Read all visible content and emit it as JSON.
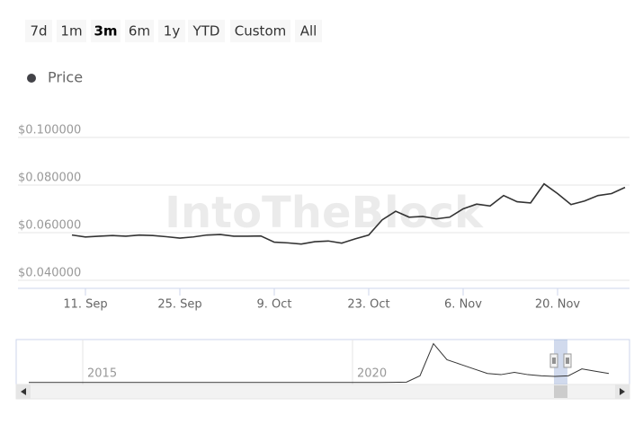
{
  "chart_data": [
    {
      "type": "line",
      "range_buttons": [
        "7d",
        "1m",
        "3m",
        "6m",
        "1y",
        "YTD",
        "Custom",
        "All"
      ],
      "range_selected": 2,
      "watermark": "IntoTheBlock",
      "categories": [
        null,
        "11. Sep",
        null,
        null,
        null,
        null,
        null,
        null,
        "25. Sep",
        null,
        null,
        null,
        null,
        null,
        null,
        "9. Oct",
        null,
        null,
        null,
        null,
        null,
        null,
        "23. Oct",
        null,
        null,
        null,
        null,
        null,
        null,
        "6. Nov",
        null,
        null,
        null,
        null,
        null,
        null,
        "20. Nov",
        null,
        null,
        null,
        null,
        null
      ],
      "series": [
        {
          "name": "Price",
          "color": "#333333",
          "legend_color": "#434348",
          "values": [
            0.059,
            0.0582,
            0.0585,
            0.0588,
            0.0585,
            0.059,
            0.0588,
            0.0583,
            0.0577,
            0.0582,
            0.059,
            0.0592,
            0.0585,
            0.0585,
            0.0586,
            0.056,
            0.0557,
            0.0552,
            0.0562,
            0.0565,
            0.0556,
            0.0574,
            0.059,
            0.0654,
            0.069,
            0.0665,
            0.0668,
            0.0658,
            0.0665,
            0.07,
            0.072,
            0.0712,
            0.0756,
            0.073,
            0.0725,
            0.0805,
            0.0764,
            0.0718,
            0.0733,
            0.0756,
            0.0764,
            0.079
          ]
        }
      ],
      "ylim": [
        0.0366,
        0.1
      ],
      "yticks": [
        {
          "value": 0.04,
          "label": "$0.040000"
        },
        {
          "value": 0.06,
          "label": "$0.060000"
        },
        {
          "value": 0.08,
          "label": "$0.080000"
        },
        {
          "value": 0.1,
          "label": "$0.100000"
        }
      ],
      "grid": true
    },
    {
      "type": "navigator",
      "categories": [
        null,
        null,
        null,
        null,
        "2015",
        null,
        null,
        null,
        null,
        null,
        null,
        null,
        null,
        null,
        null,
        null,
        null,
        null,
        null,
        null,
        null,
        null,
        null,
        null,
        "2020",
        null,
        null,
        null,
        null,
        null,
        null,
        null,
        null,
        null,
        null,
        null,
        null,
        null,
        null,
        null,
        null,
        null,
        null,
        null
      ],
      "series": [
        {
          "color": "#333333",
          "values": [
            0.002,
            0.002,
            0.002,
            0.002,
            0.002,
            0.002,
            0.002,
            0.002,
            0.002,
            0.002,
            0.002,
            0.002,
            0.002,
            0.002,
            0.002,
            0.002,
            0.002,
            0.002,
            0.002,
            0.002,
            0.002,
            0.002,
            0.002,
            0.002,
            0.002,
            0.002,
            0.002,
            0.003,
            0.005,
            0.06,
            0.34,
            0.2,
            0.16,
            0.12,
            0.08,
            0.07,
            0.09,
            0.07,
            0.06,
            0.055,
            0.06,
            0.12,
            0.1,
            0.08
          ]
        }
      ],
      "ylim": [
        0,
        0.36
      ]
    }
  ]
}
